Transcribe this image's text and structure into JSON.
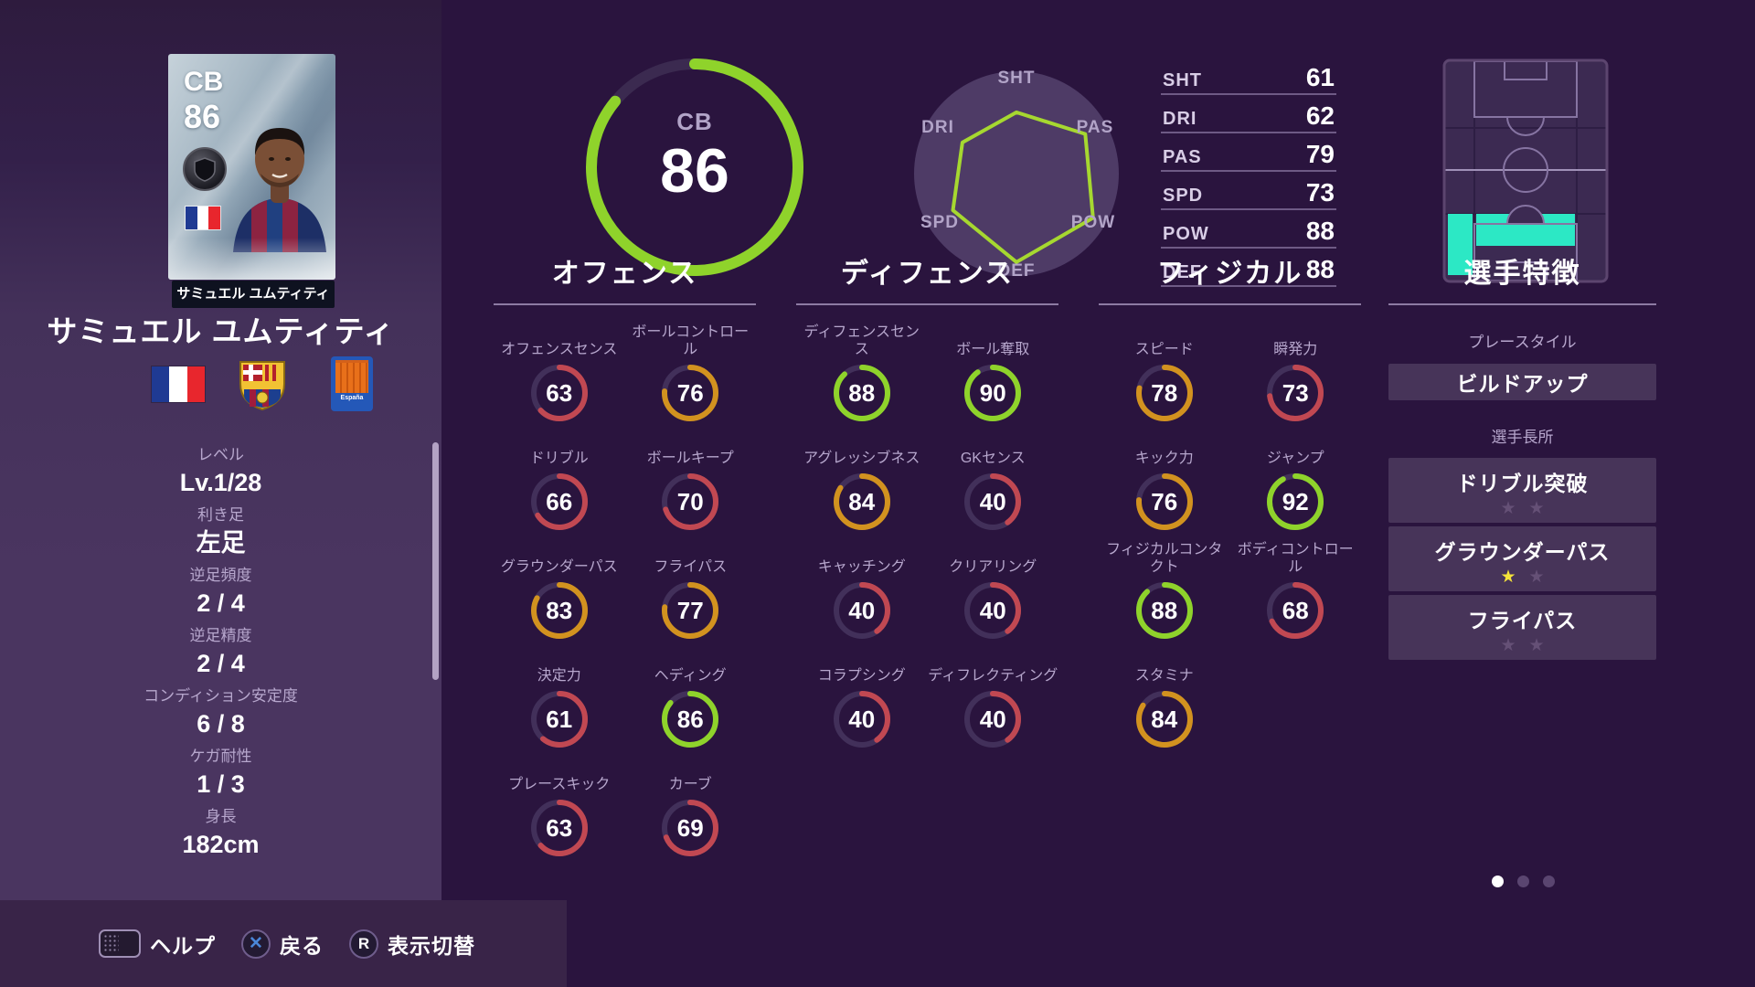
{
  "colors": {
    "bg": "#2a143e",
    "sidebar": "#4a3560",
    "sidebar_top": "#2e1b3e",
    "footer": "#392448",
    "green": "#8fd32b",
    "orange": "#d2921f",
    "red": "#c14852",
    "track": "#42305a",
    "radar_bg": "#4e3b66",
    "radar_stroke": "#a6d830",
    "text_dim": "#b7a7cd",
    "underline": "#6e5a85",
    "box": "#473459",
    "cyan": "#2ce8c5",
    "pitch_bg": "#3c2a52",
    "pitch_line": "#8674a2",
    "star_on": "#f5e33a",
    "star_off": "#655076",
    "dot_on": "#ffffff",
    "dot_off": "#5a4570",
    "x_blue": "#4a86d8"
  },
  "card": {
    "position": "CB",
    "rating": "86",
    "name": "サミュエル ユムティティ"
  },
  "player": {
    "name": "サミュエル ユムティティ",
    "info": [
      {
        "label": "レベル",
        "value": "Lv.1/28"
      },
      {
        "label": "利き足",
        "value": "左足"
      },
      {
        "label": "逆足頻度",
        "value": "2 / 4"
      },
      {
        "label": "逆足精度",
        "value": "2 / 4"
      },
      {
        "label": "コンディション安定度",
        "value": "6 / 8"
      },
      {
        "label": "ケガ耐性",
        "value": "1 / 3"
      },
      {
        "label": "身長",
        "value": "182cm"
      }
    ]
  },
  "overall": {
    "position": "CB",
    "rating": 86
  },
  "radar": {
    "axes": [
      "SHT",
      "PAS",
      "POW",
      "DEF",
      "SPD",
      "DRI"
    ],
    "values": [
      61,
      79,
      88,
      88,
      73,
      62
    ]
  },
  "summary": [
    {
      "label": "SHT",
      "value": 61
    },
    {
      "label": "DRI",
      "value": 62
    },
    {
      "label": "PAS",
      "value": 79
    },
    {
      "label": "SPD",
      "value": 73
    },
    {
      "label": "POW",
      "value": 88
    },
    {
      "label": "DEF",
      "value": 88
    }
  ],
  "sections": [
    {
      "title": "オフェンス",
      "stats": [
        {
          "name": "オフェンスセンス",
          "value": 63
        },
        {
          "name": "ボールコントロール",
          "value": 76
        },
        {
          "name": "ドリブル",
          "value": 66
        },
        {
          "name": "ボールキープ",
          "value": 70
        },
        {
          "name": "グラウンダーパス",
          "value": 83
        },
        {
          "name": "フライパス",
          "value": 77
        },
        {
          "name": "決定力",
          "value": 61
        },
        {
          "name": "ヘディング",
          "value": 86
        },
        {
          "name": "プレースキック",
          "value": 63
        },
        {
          "name": "カーブ",
          "value": 69
        }
      ]
    },
    {
      "title": "ディフェンス",
      "stats": [
        {
          "name": "ディフェンスセンス",
          "value": 88
        },
        {
          "name": "ボール奪取",
          "value": 90
        },
        {
          "name": "アグレッシブネス",
          "value": 84
        },
        {
          "name": "GKセンス",
          "value": 40
        },
        {
          "name": "キャッチング",
          "value": 40
        },
        {
          "name": "クリアリング",
          "value": 40
        },
        {
          "name": "コラプシング",
          "value": 40
        },
        {
          "name": "ディフレクティング",
          "value": 40
        }
      ]
    },
    {
      "title": "フィジカル",
      "stats": [
        {
          "name": "スピード",
          "value": 78
        },
        {
          "name": "瞬発力",
          "value": 73
        },
        {
          "name": "キック力",
          "value": 76
        },
        {
          "name": "ジャンプ",
          "value": 92
        },
        {
          "name": "フィジカルコンタクト",
          "value": 88
        },
        {
          "name": "ボディコントロール",
          "value": 68
        },
        {
          "name": "スタミナ",
          "value": 84
        }
      ]
    }
  ],
  "traits": {
    "title": "選手特徴",
    "playstyle_label": "プレースタイル",
    "playstyle": "ビルドアップ",
    "skills_label": "選手長所",
    "skills": [
      {
        "name": "ドリブル突破",
        "stars": 0,
        "stars_max": 2
      },
      {
        "name": "グラウンダーパス",
        "stars": 1,
        "stars_max": 2
      },
      {
        "name": "フライパス",
        "stars": 0,
        "stars_max": 2
      }
    ]
  },
  "pagination": {
    "total": 3,
    "active": 0
  },
  "footer": {
    "help_label": "ヘルプ",
    "back_key": "✕",
    "back_label": "戻る",
    "toggle_key": "R",
    "toggle_label": "表示切替"
  },
  "chart_data": {
    "type": "radar",
    "categories": [
      "SHT",
      "PAS",
      "POW",
      "DEF",
      "SPD",
      "DRI"
    ],
    "values": [
      61,
      79,
      88,
      88,
      73,
      62
    ],
    "title": "player attribute hexagon",
    "range": [
      0,
      100
    ]
  }
}
